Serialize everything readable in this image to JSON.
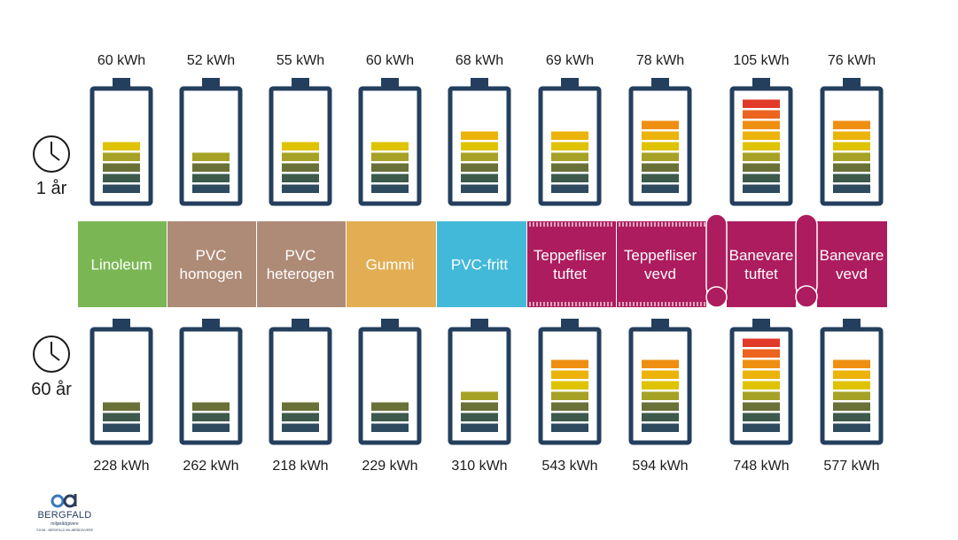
{
  "chart_data": {
    "type": "battery-infographic",
    "period_labels": {
      "top": "1 år",
      "bottom": "60 år"
    },
    "categories": [
      {
        "label_lines": [
          "Linoleum"
        ],
        "color": "#7ab754"
      },
      {
        "label_lines": [
          "PVC",
          "homogen"
        ],
        "color": "#ae8b76"
      },
      {
        "label_lines": [
          "PVC",
          "heterogen"
        ],
        "color": "#ae8b76"
      },
      {
        "label_lines": [
          "Gummi"
        ],
        "color": "#e2ad53"
      },
      {
        "label_lines": [
          "PVC-fritt"
        ],
        "color": "#43b9d9"
      },
      {
        "label_lines": [
          "Teppefliser",
          "tuftet"
        ],
        "color": "#ad1c5e"
      },
      {
        "label_lines": [
          "Teppefliser",
          "vevd"
        ],
        "color": "#ad1c5e"
      },
      {
        "label_lines": [
          "Banevare",
          "tuftet"
        ],
        "color": "#ad1c5e"
      },
      {
        "label_lines": [
          "Banevare",
          "vevd"
        ],
        "color": "#ad1c5e"
      }
    ],
    "series": [
      {
        "name": "1 år",
        "labels": [
          "60 kWh",
          "52 kWh",
          "55 kWh",
          "60 kWh",
          "68 kWh",
          "69 kWh",
          "78 kWh",
          "105 kWh",
          "76 kWh"
        ],
        "values": [
          60,
          52,
          55,
          60,
          68,
          69,
          78,
          105,
          76
        ]
      },
      {
        "name": "60 år",
        "labels": [
          "228 kWh",
          "262 kWh",
          "218 kWh",
          "229 kWh",
          "310 kWh",
          "543 kWh",
          "594 kWh",
          "748 kWh",
          "577 kWh"
        ],
        "values": [
          228,
          262,
          218,
          229,
          310,
          543,
          594,
          748,
          577
        ]
      }
    ],
    "segment_colors": [
      "#2d4a5e",
      "#3d5a4c",
      "#6a7138",
      "#a6a226",
      "#dfc300",
      "#ecb30a",
      "#ef8f12",
      "#ec6420",
      "#e23a28"
    ],
    "battery_color": "#243f5e"
  },
  "logo": {
    "name": "BERGFALD",
    "tagline": "miljørådgivere",
    "copyright": "©2018 - BERGFALD MILJØRÅDGIVERE"
  }
}
